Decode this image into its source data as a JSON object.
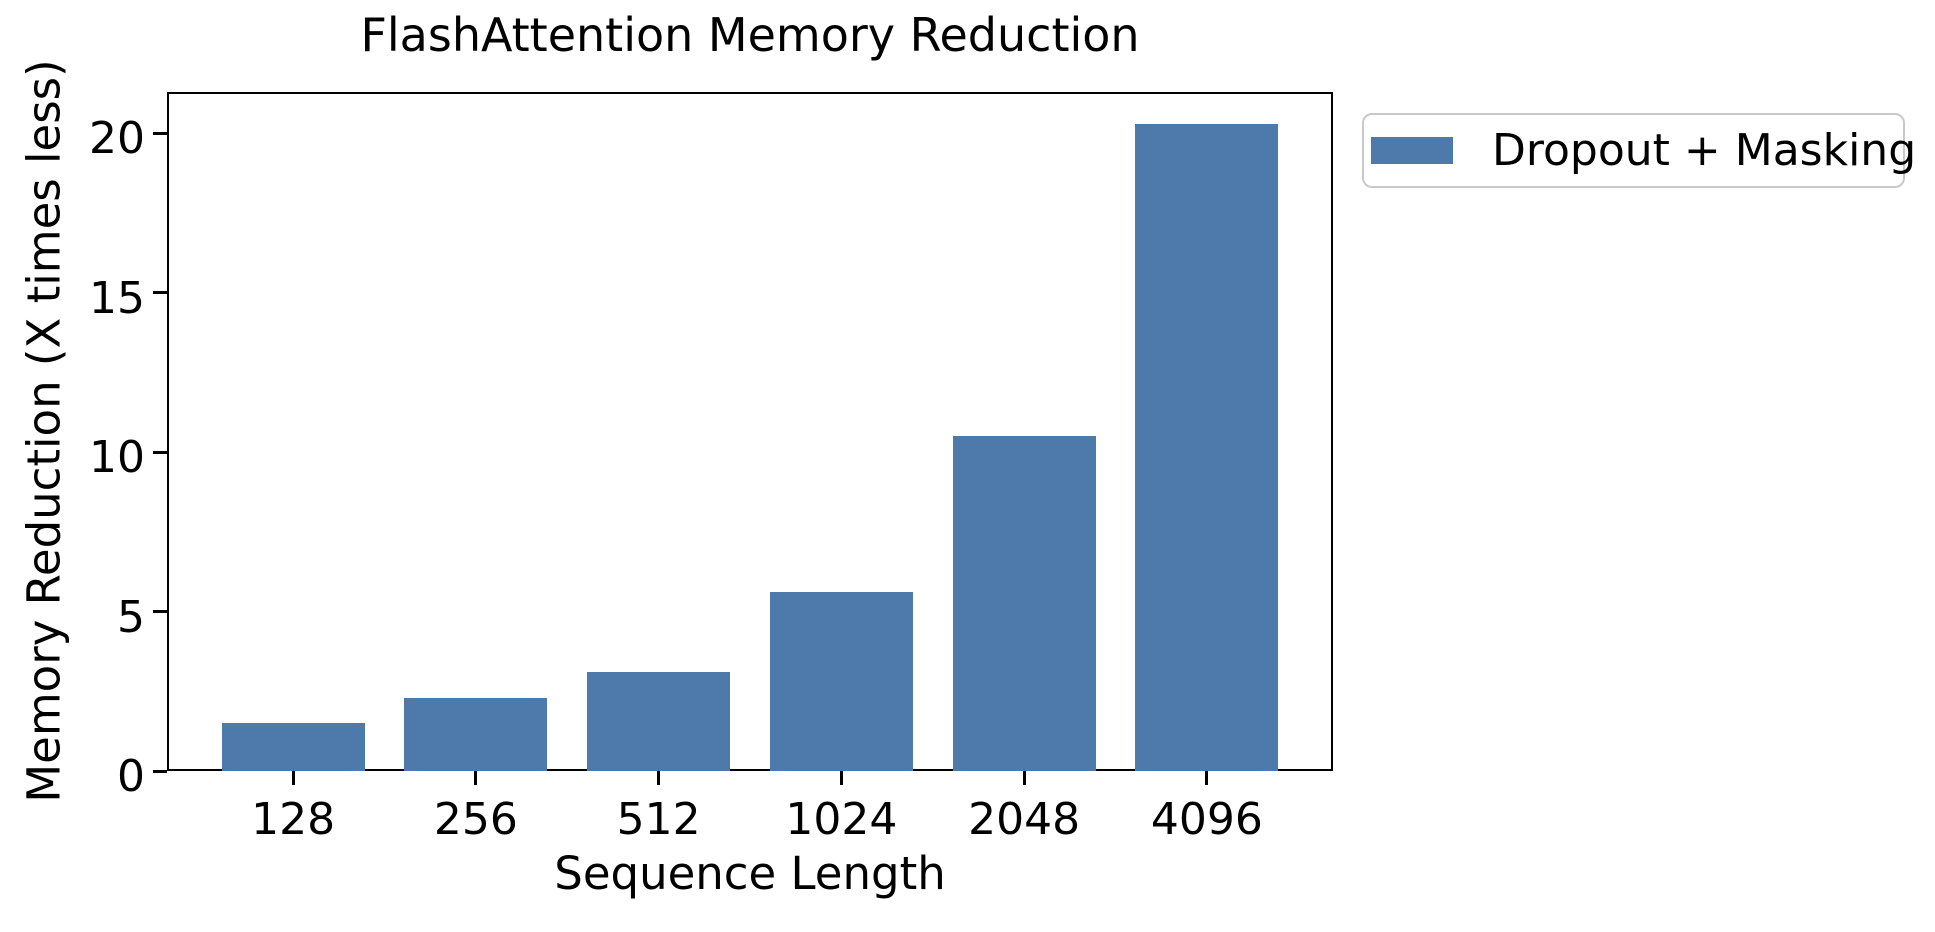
{
  "chart_data": {
    "type": "bar",
    "title": "FlashAttention Memory Reduction",
    "xlabel": "Sequence Length",
    "ylabel": "Memory Reduction (X times less)",
    "categories": [
      "128",
      "256",
      "512",
      "1024",
      "2048",
      "4096"
    ],
    "values": [
      1.5,
      2.3,
      3.1,
      5.6,
      10.5,
      20.3
    ],
    "series": [
      {
        "name": "Dropout + Masking",
        "values": [
          1.5,
          2.3,
          3.1,
          5.6,
          10.5,
          20.3
        ]
      }
    ],
    "yticks": [
      0,
      5,
      10,
      15,
      20
    ],
    "ylim": [
      0,
      21.3
    ],
    "grid": false,
    "legend": {
      "label": "Dropout + Masking",
      "position": "outside-upper-right"
    },
    "bar_color": "#4D7AAA",
    "axis_color": "#000000",
    "legend_border_color": "#c9c9c9",
    "background_color": "#ffffff"
  }
}
